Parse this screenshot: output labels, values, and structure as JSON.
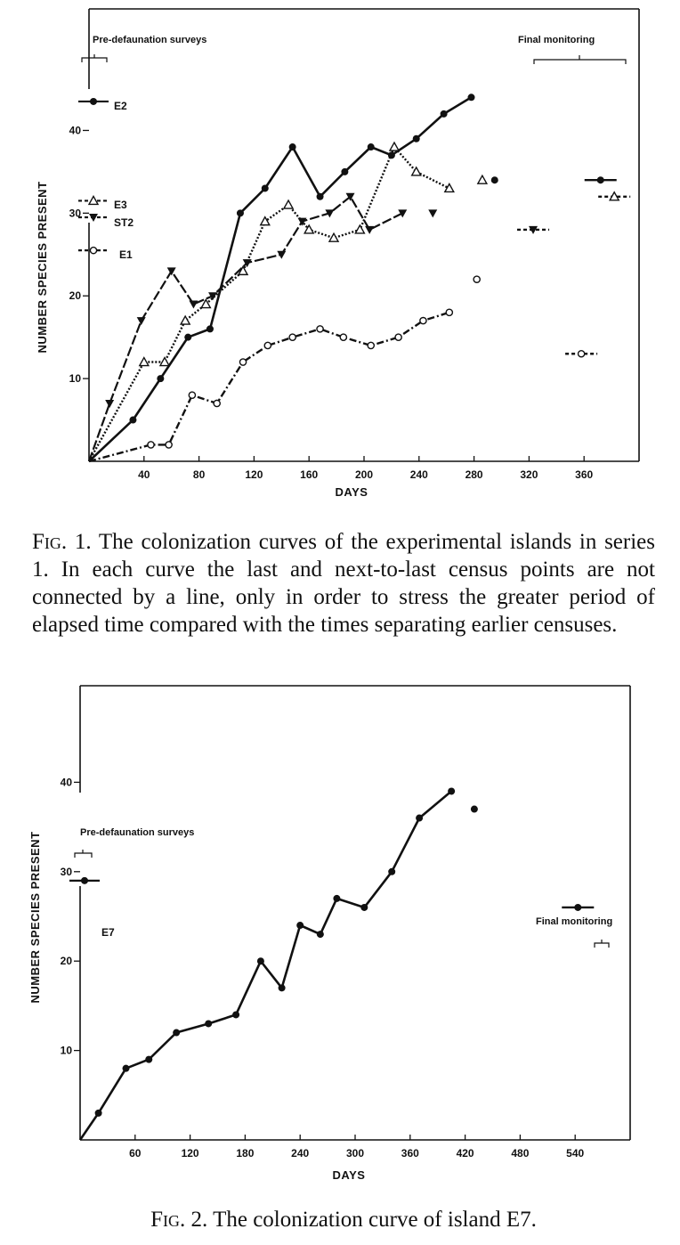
{
  "figure1": {
    "caption_label": "Fig. 1.",
    "caption_text": "The colonization curves of the experimental islands in series 1. In each curve the last and next-to-last census points are not connected by a line, only in order to stress the greater period of elapsed time compared with the times separating earlier censuses.",
    "chart_data": {
      "type": "line",
      "xlabel": "DAYS",
      "ylabel": "NUMBER SPECIES PRESENT",
      "xlim": [
        0,
        400
      ],
      "ylim": [
        0,
        52
      ],
      "xticks": [
        40,
        80,
        120,
        160,
        200,
        240,
        280,
        320,
        360
      ],
      "yticks": [
        10,
        20,
        30,
        40
      ],
      "annotations": [
        "Pre-defaunation surveys",
        "Final monitoring"
      ],
      "series": [
        {
          "name": "E2",
          "marker": "filled-circle",
          "pre_defaunation": 43.5,
          "x": [
            0,
            32,
            52,
            72,
            88,
            110,
            128,
            148,
            168,
            186,
            205,
            220,
            238,
            258,
            278,
            295
          ],
          "values": [
            0,
            5,
            10,
            15,
            16,
            30,
            33,
            38,
            32,
            35,
            38,
            37,
            39,
            42,
            44,
            34
          ],
          "final": {
            "x": 372,
            "value": 34
          }
        },
        {
          "name": "E3",
          "marker": "open-triangle",
          "pre_defaunation": 31.5,
          "x": [
            0,
            40,
            55,
            70,
            85,
            112,
            128,
            145,
            160,
            178,
            197,
            222,
            238,
            262,
            286
          ],
          "values": [
            0,
            12,
            12,
            17,
            19,
            23,
            29,
            31,
            28,
            27,
            28,
            38,
            35,
            33,
            34
          ],
          "final": {
            "x": 382,
            "value": 32
          }
        },
        {
          "name": "ST2",
          "marker": "filled-triangle-down",
          "pre_defaunation": 29.5,
          "x": [
            0,
            15,
            38,
            60,
            76,
            90,
            115,
            140,
            155,
            175,
            190,
            204,
            228,
            250
          ],
          "values": [
            0,
            7,
            17,
            23,
            19,
            20,
            24,
            25,
            29,
            30,
            32,
            28,
            30,
            30
          ],
          "final": {
            "x": 323,
            "value": 28
          }
        },
        {
          "name": "E1",
          "marker": "open-circle",
          "pre_defaunation": 25.5,
          "x": [
            0,
            45,
            58,
            75,
            93,
            112,
            130,
            148,
            168,
            185,
            205,
            225,
            243,
            262,
            282
          ],
          "values": [
            0,
            2,
            2,
            8,
            7,
            12,
            14,
            15,
            16,
            15,
            14,
            15,
            17,
            18,
            22
          ],
          "final": {
            "x": 358,
            "value": 13
          }
        }
      ]
    }
  },
  "figure2": {
    "caption_label": "Fig. 2.",
    "caption_text": "The colonization curve of island E7.",
    "chart_data": {
      "type": "line",
      "xlabel": "DAYS",
      "ylabel": "NUMBER SPECIES PRESENT",
      "xlim": [
        0,
        600
      ],
      "ylim": [
        0,
        50
      ],
      "xticks": [
        60,
        120,
        180,
        240,
        300,
        360,
        420,
        480,
        540
      ],
      "yticks": [
        10,
        20,
        30,
        40
      ],
      "annotations": [
        "Pre-defaunation surveys",
        "Final monitoring"
      ],
      "series": [
        {
          "name": "E7",
          "marker": "filled-circle",
          "pre_defaunation": 29,
          "x": [
            0,
            20,
            50,
            75,
            105,
            140,
            170,
            197,
            220,
            240,
            262,
            280,
            310,
            340,
            370,
            405,
            430
          ],
          "values": [
            0,
            3,
            8,
            9,
            12,
            13,
            14,
            20,
            17,
            24,
            23,
            27,
            26,
            30,
            36,
            39,
            37
          ],
          "final": {
            "x": 543,
            "value": 26
          }
        }
      ]
    }
  }
}
